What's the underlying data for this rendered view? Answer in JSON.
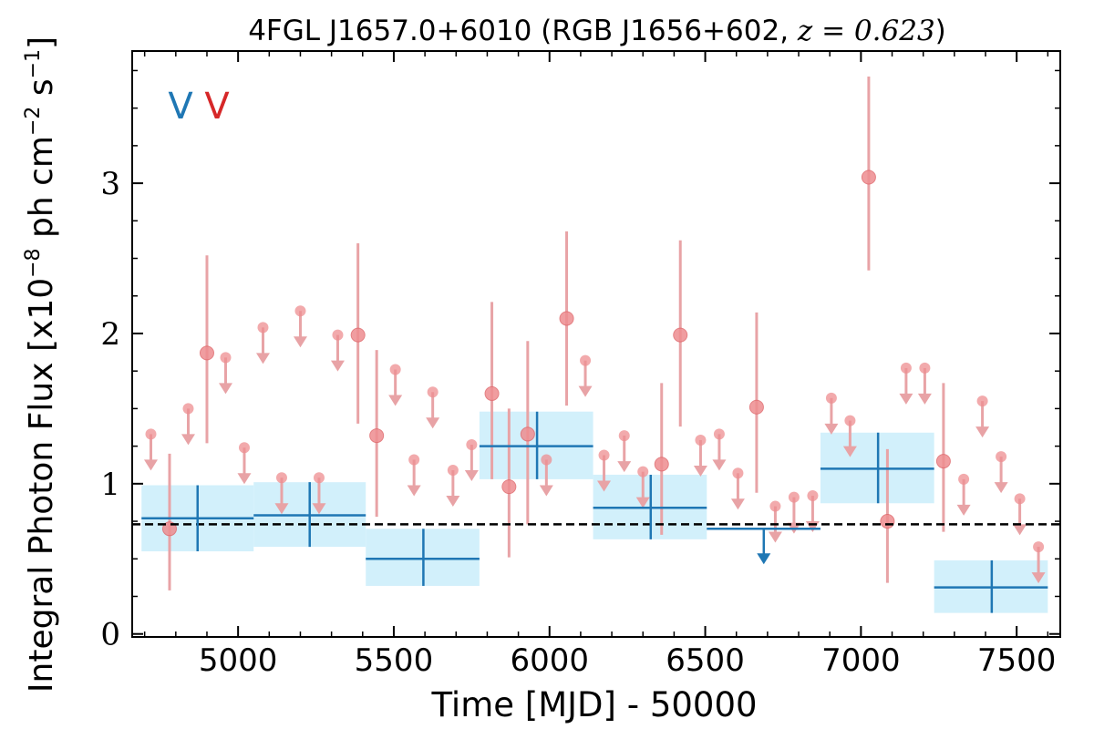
{
  "chart_data": {
    "type": "scatter",
    "title_prefix": "4FGL J1657.0+6010 (RGB J1656+602, ",
    "title_math": "z = 0.623",
    "title_suffix": ")",
    "xlabel": "Time [MJD] - 50000",
    "ylabel": "Integral Photon Flux [x10",
    "ylabel_exp1": "−8",
    "ylabel_mid": " ph cm",
    "ylabel_exp2": "−2",
    "ylabel_mid2": " s",
    "ylabel_exp3": "−1",
    "ylabel_end": "]",
    "xlim": [
      4660,
      7640
    ],
    "ylim": [
      -0.02,
      3.88
    ],
    "xticks": [
      5000,
      5500,
      6000,
      6500,
      7000,
      7500
    ],
    "yticks": [
      0,
      1,
      2,
      3
    ],
    "grid": false,
    "legend_placement": "top-left",
    "baseline": 0.73,
    "colors": {
      "blue": "#1f77b4",
      "blue_fill": "#d2f0fb",
      "red": "#d62728",
      "red_light": "#e8a3a6",
      "red_fill": "#ee8d90"
    },
    "legend_markers": [
      {
        "label": "V",
        "color": "#1f77b4"
      },
      {
        "label": "V",
        "color": "#d62728"
      }
    ],
    "blue_bins": [
      {
        "x0": 4690,
        "x1": 5050,
        "y": 0.77,
        "ylo": 0.55,
        "yhi": 0.99,
        "xc": 4870,
        "err_lo": 0.55,
        "err_hi": 0.99
      },
      {
        "x0": 5050,
        "x1": 5410,
        "y": 0.79,
        "ylo": 0.58,
        "yhi": 1.01,
        "xc": 5230,
        "err_lo": 0.58,
        "err_hi": 1.01
      },
      {
        "x0": 5410,
        "x1": 5775,
        "y": 0.5,
        "ylo": 0.32,
        "yhi": 0.7,
        "xc": 5595,
        "err_lo": 0.32,
        "err_hi": 0.7
      },
      {
        "x0": 5775,
        "x1": 6140,
        "y": 1.25,
        "ylo": 1.03,
        "yhi": 1.48,
        "xc": 5960,
        "err_lo": 1.03,
        "err_hi": 1.48
      },
      {
        "x0": 6140,
        "x1": 6505,
        "y": 0.84,
        "ylo": 0.63,
        "yhi": 1.06,
        "xc": 6325,
        "err_lo": 0.63,
        "err_hi": 1.06
      },
      {
        "x0": 6870,
        "x1": 7235,
        "y": 1.1,
        "ylo": 0.87,
        "yhi": 1.34,
        "xc": 7055,
        "err_lo": 0.87,
        "err_hi": 1.34
      },
      {
        "x0": 7235,
        "x1": 7600,
        "y": 0.31,
        "ylo": 0.14,
        "yhi": 0.49,
        "xc": 7420,
        "err_lo": 0.14,
        "err_hi": 0.49
      }
    ],
    "blue_upper_limits": [
      {
        "x0": 6505,
        "x1": 6870,
        "y": 0.7,
        "xc": 6688
      }
    ],
    "red_points": [
      {
        "x": 4780,
        "y": 0.7,
        "lo": 0.29,
        "hi": 1.2
      },
      {
        "x": 4900,
        "y": 1.87,
        "lo": 1.27,
        "hi": 2.52
      },
      {
        "x": 5385,
        "y": 1.99,
        "lo": 1.4,
        "hi": 2.6
      },
      {
        "x": 5445,
        "y": 1.32,
        "lo": 0.78,
        "hi": 1.89
      },
      {
        "x": 5815,
        "y": 1.6,
        "lo": 1.03,
        "hi": 2.21
      },
      {
        "x": 5870,
        "y": 0.98,
        "lo": 0.51,
        "hi": 1.5
      },
      {
        "x": 5930,
        "y": 1.33,
        "lo": 0.73,
        "hi": 1.95
      },
      {
        "x": 6055,
        "y": 2.1,
        "lo": 1.52,
        "hi": 2.68
      },
      {
        "x": 6360,
        "y": 1.13,
        "lo": 0.66,
        "hi": 1.67
      },
      {
        "x": 6420,
        "y": 1.99,
        "lo": 1.38,
        "hi": 2.62
      },
      {
        "x": 6665,
        "y": 1.51,
        "lo": 0.94,
        "hi": 2.14
      },
      {
        "x": 7025,
        "y": 3.04,
        "lo": 2.42,
        "hi": 3.71
      },
      {
        "x": 7085,
        "y": 0.75,
        "lo": 0.34,
        "hi": 1.23
      },
      {
        "x": 7265,
        "y": 1.15,
        "lo": 0.68,
        "hi": 1.67
      }
    ],
    "red_upper_limits": [
      {
        "x": 4720,
        "y": 1.33
      },
      {
        "x": 4840,
        "y": 1.5
      },
      {
        "x": 4960,
        "y": 1.84
      },
      {
        "x": 5020,
        "y": 1.24
      },
      {
        "x": 5080,
        "y": 2.04
      },
      {
        "x": 5140,
        "y": 1.04
      },
      {
        "x": 5200,
        "y": 2.15
      },
      {
        "x": 5260,
        "y": 1.04
      },
      {
        "x": 5320,
        "y": 1.99
      },
      {
        "x": 5505,
        "y": 1.76
      },
      {
        "x": 5565,
        "y": 1.16
      },
      {
        "x": 5625,
        "y": 1.61
      },
      {
        "x": 5690,
        "y": 1.09
      },
      {
        "x": 5750,
        "y": 1.26
      },
      {
        "x": 5990,
        "y": 1.16
      },
      {
        "x": 6115,
        "y": 1.82
      },
      {
        "x": 6175,
        "y": 1.19
      },
      {
        "x": 6240,
        "y": 1.32
      },
      {
        "x": 6300,
        "y": 1.08
      },
      {
        "x": 6485,
        "y": 1.29
      },
      {
        "x": 6545,
        "y": 1.33
      },
      {
        "x": 6605,
        "y": 1.07
      },
      {
        "x": 6725,
        "y": 0.85
      },
      {
        "x": 6785,
        "y": 0.91
      },
      {
        "x": 6845,
        "y": 0.92
      },
      {
        "x": 6905,
        "y": 1.57
      },
      {
        "x": 6965,
        "y": 1.42
      },
      {
        "x": 7145,
        "y": 1.77
      },
      {
        "x": 7205,
        "y": 1.77
      },
      {
        "x": 7330,
        "y": 1.03
      },
      {
        "x": 7390,
        "y": 1.55
      },
      {
        "x": 7450,
        "y": 1.18
      },
      {
        "x": 7510,
        "y": 0.9
      },
      {
        "x": 7570,
        "y": 0.58
      }
    ]
  }
}
